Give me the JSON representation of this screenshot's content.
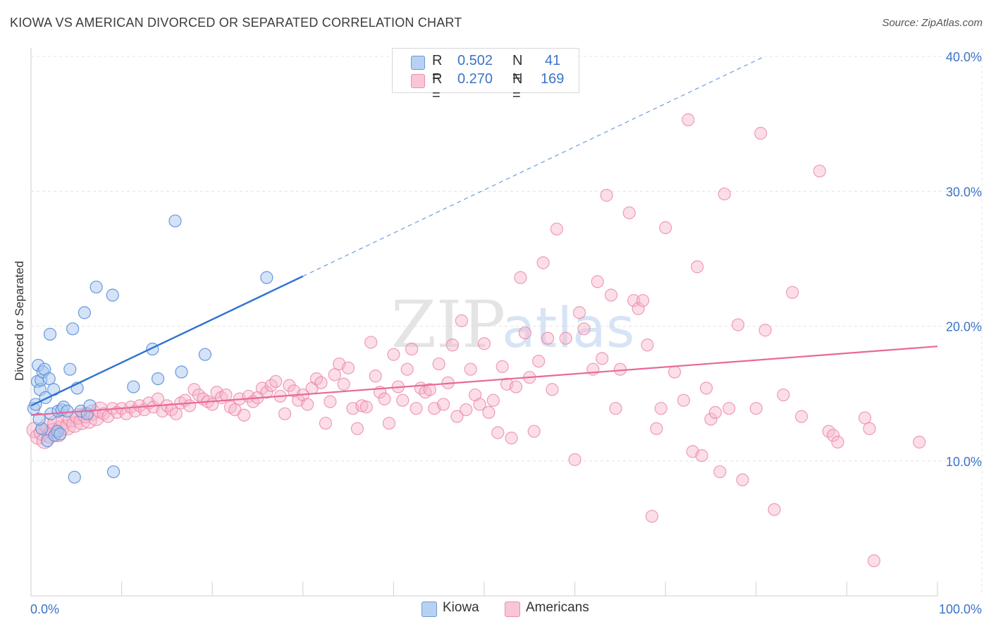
{
  "title": "KIOWA VS AMERICAN DIVORCED OR SEPARATED CORRELATION CHART",
  "source": "Source: ZipAtlas.com",
  "watermark": {
    "zip": "ZIP",
    "atlas": "atlas"
  },
  "legend": {
    "rows": [
      {
        "r_label": "R =",
        "r_value": "0.502",
        "n_label": "N =",
        "n_value": "41"
      },
      {
        "r_label": "R =",
        "r_value": "0.270",
        "n_label": "N =",
        "n_value": "169"
      }
    ]
  },
  "bottom_legend": [
    "Kiowa",
    "Americans"
  ],
  "colors": {
    "kiowa_fill": "#a9c7ef",
    "kiowa_stroke": "#5b8fd8",
    "kiowa_line": "#2f72d0",
    "americans_fill": "#f6b6cc",
    "americans_stroke": "#ea7fa3",
    "americans_line": "#e8689a",
    "axis_label": "#3a74c9",
    "grid": "#e4e4e4"
  },
  "chart_data": {
    "type": "scatter",
    "title": "KIOWA VS AMERICAN DIVORCED OR SEPARATED CORRELATION CHART",
    "xlabel": "",
    "ylabel": "Divorced or Separated",
    "xlim": [
      0,
      100
    ],
    "ylim": [
      0,
      40
    ],
    "x_tick_labels": [
      "0.0%",
      "100.0%"
    ],
    "y_ticks": [
      10,
      20,
      30,
      40
    ],
    "y_tick_labels": [
      "10.0%",
      "20.0%",
      "30.0%",
      "40.0%"
    ],
    "grid": true,
    "legend_position": "top-center",
    "series": [
      {
        "name": "Kiowa",
        "r": 0.502,
        "n": 41,
        "trend": {
          "x": [
            0,
            30
          ],
          "y": [
            14.1,
            23.7
          ],
          "dashed_extension_to_x": 100
        },
        "points": [
          [
            0.3,
            13.9
          ],
          [
            0.5,
            14.2
          ],
          [
            0.7,
            15.9
          ],
          [
            0.8,
            17.1
          ],
          [
            1.0,
            15.3
          ],
          [
            1.1,
            16.0
          ],
          [
            1.3,
            16.6
          ],
          [
            1.5,
            16.8
          ],
          [
            1.6,
            14.7
          ],
          [
            1.8,
            11.5
          ],
          [
            2.0,
            16.1
          ],
          [
            2.1,
            19.4
          ],
          [
            2.2,
            13.5
          ],
          [
            2.5,
            15.3
          ],
          [
            2.6,
            11.9
          ],
          [
            2.9,
            12.2
          ],
          [
            3.0,
            13.7
          ],
          [
            3.2,
            12.0
          ],
          [
            3.4,
            13.8
          ],
          [
            3.6,
            14.0
          ],
          [
            4.0,
            13.7
          ],
          [
            4.3,
            16.8
          ],
          [
            4.6,
            19.8
          ],
          [
            4.8,
            8.8
          ],
          [
            5.1,
            15.4
          ],
          [
            5.5,
            13.7
          ],
          [
            5.9,
            21.0
          ],
          [
            6.2,
            13.5
          ],
          [
            6.5,
            14.1
          ],
          [
            7.2,
            22.9
          ],
          [
            9.0,
            22.3
          ],
          [
            9.1,
            9.2
          ],
          [
            11.3,
            15.5
          ],
          [
            13.4,
            18.3
          ],
          [
            14.0,
            16.1
          ],
          [
            15.9,
            27.8
          ],
          [
            16.6,
            16.6
          ],
          [
            19.2,
            17.9
          ],
          [
            26.0,
            23.6
          ],
          [
            1.2,
            12.4
          ],
          [
            0.9,
            13.1
          ]
        ]
      },
      {
        "name": "Americans",
        "r": 0.27,
        "n": 169,
        "trend": {
          "x": [
            0,
            100
          ],
          "y": [
            13.4,
            18.5
          ]
        },
        "points": [
          [
            0.4,
            12.3
          ],
          [
            0.8,
            11.8
          ],
          [
            1.2,
            12.1
          ],
          [
            1.5,
            11.5
          ],
          [
            1.8,
            12.6
          ],
          [
            2.1,
            11.9
          ],
          [
            2.4,
            12.2
          ],
          [
            2.7,
            12.8
          ],
          [
            3.0,
            12.0
          ],
          [
            3.3,
            12.4
          ],
          [
            3.6,
            12.9
          ],
          [
            4.0,
            12.5
          ],
          [
            4.4,
            13.1
          ],
          [
            4.8,
            12.7
          ],
          [
            5.2,
            13.3
          ],
          [
            5.6,
            12.9
          ],
          [
            6.0,
            13.4
          ],
          [
            6.4,
            13.0
          ],
          [
            6.8,
            13.6
          ],
          [
            7.2,
            13.2
          ],
          [
            7.6,
            13.8
          ],
          [
            8.0,
            13.5
          ],
          [
            8.5,
            13.3
          ],
          [
            9.0,
            13.9
          ],
          [
            9.5,
            13.6
          ],
          [
            10.0,
            13.9
          ],
          [
            10.5,
            13.5
          ],
          [
            11.0,
            14.0
          ],
          [
            11.5,
            13.7
          ],
          [
            12.0,
            14.1
          ],
          [
            12.5,
            13.8
          ],
          [
            13.0,
            14.3
          ],
          [
            13.5,
            14.0
          ],
          [
            14.0,
            14.6
          ],
          [
            14.5,
            13.7
          ],
          [
            15.0,
            14.1
          ],
          [
            15.5,
            13.8
          ],
          [
            16.0,
            13.5
          ],
          [
            16.5,
            14.3
          ],
          [
            17.0,
            14.5
          ],
          [
            17.5,
            14.1
          ],
          [
            18.0,
            15.3
          ],
          [
            18.5,
            14.9
          ],
          [
            19.0,
            14.6
          ],
          [
            19.5,
            14.4
          ],
          [
            20.0,
            14.2
          ],
          [
            20.5,
            15.1
          ],
          [
            21.0,
            14.7
          ],
          [
            21.5,
            14.9
          ],
          [
            22.0,
            14.0
          ],
          [
            22.5,
            13.8
          ],
          [
            23.0,
            14.6
          ],
          [
            23.5,
            13.4
          ],
          [
            24.0,
            14.8
          ],
          [
            24.5,
            14.4
          ],
          [
            25.0,
            14.7
          ],
          [
            25.5,
            15.4
          ],
          [
            26.0,
            15.1
          ],
          [
            26.5,
            15.6
          ],
          [
            27.0,
            15.9
          ],
          [
            27.5,
            14.8
          ],
          [
            28.0,
            13.5
          ],
          [
            28.5,
            15.6
          ],
          [
            29.0,
            15.2
          ],
          [
            29.5,
            14.5
          ],
          [
            30.0,
            14.9
          ],
          [
            30.5,
            14.2
          ],
          [
            31.0,
            15.4
          ],
          [
            31.5,
            16.1
          ],
          [
            32.0,
            15.8
          ],
          [
            32.5,
            12.8
          ],
          [
            33.0,
            14.4
          ],
          [
            33.5,
            16.4
          ],
          [
            34.0,
            17.2
          ],
          [
            34.5,
            15.7
          ],
          [
            35.0,
            16.9
          ],
          [
            35.5,
            13.9
          ],
          [
            36.0,
            12.4
          ],
          [
            36.5,
            14.1
          ],
          [
            37.0,
            14.0
          ],
          [
            37.5,
            18.8
          ],
          [
            38.0,
            16.3
          ],
          [
            38.5,
            15.1
          ],
          [
            39.0,
            14.6
          ],
          [
            39.5,
            12.8
          ],
          [
            40.0,
            17.9
          ],
          [
            40.5,
            15.5
          ],
          [
            41.0,
            14.5
          ],
          [
            41.5,
            16.8
          ],
          [
            42.0,
            18.3
          ],
          [
            42.5,
            13.9
          ],
          [
            43.0,
            15.4
          ],
          [
            43.5,
            15.1
          ],
          [
            44.0,
            15.3
          ],
          [
            44.5,
            13.9
          ],
          [
            45.0,
            17.2
          ],
          [
            45.5,
            14.2
          ],
          [
            46.0,
            15.8
          ],
          [
            46.5,
            18.6
          ],
          [
            47.0,
            13.3
          ],
          [
            47.5,
            20.4
          ],
          [
            48.0,
            13.8
          ],
          [
            48.5,
            16.8
          ],
          [
            49.0,
            14.9
          ],
          [
            49.5,
            14.2
          ],
          [
            50.0,
            18.7
          ],
          [
            50.5,
            13.6
          ],
          [
            51.0,
            14.5
          ],
          [
            51.5,
            12.1
          ],
          [
            52.0,
            17.0
          ],
          [
            52.5,
            15.7
          ],
          [
            53.0,
            11.7
          ],
          [
            53.5,
            15.5
          ],
          [
            54.0,
            23.6
          ],
          [
            54.5,
            19.5
          ],
          [
            55.0,
            16.2
          ],
          [
            55.5,
            12.2
          ],
          [
            56.0,
            17.4
          ],
          [
            56.5,
            24.7
          ],
          [
            57.0,
            19.1
          ],
          [
            57.5,
            15.3
          ],
          [
            58.0,
            27.2
          ],
          [
            59.0,
            19.1
          ],
          [
            60.0,
            10.1
          ],
          [
            60.5,
            21.0
          ],
          [
            61.0,
            19.8
          ],
          [
            62.0,
            16.8
          ],
          [
            62.5,
            23.3
          ],
          [
            63.0,
            17.6
          ],
          [
            63.5,
            29.7
          ],
          [
            64.0,
            22.3
          ],
          [
            64.5,
            13.9
          ],
          [
            65.0,
            16.8
          ],
          [
            66.0,
            28.4
          ],
          [
            66.5,
            21.9
          ],
          [
            67.0,
            21.3
          ],
          [
            67.5,
            21.9
          ],
          [
            68.0,
            18.6
          ],
          [
            68.5,
            5.9
          ],
          [
            69.0,
            12.4
          ],
          [
            69.5,
            13.9
          ],
          [
            70.0,
            27.3
          ],
          [
            71.0,
            16.6
          ],
          [
            72.0,
            14.5
          ],
          [
            72.5,
            35.3
          ],
          [
            73.0,
            10.7
          ],
          [
            73.5,
            24.4
          ],
          [
            74.0,
            10.4
          ],
          [
            74.5,
            15.4
          ],
          [
            75.0,
            13.1
          ],
          [
            75.5,
            13.6
          ],
          [
            76.0,
            9.2
          ],
          [
            76.5,
            29.8
          ],
          [
            77.0,
            13.9
          ],
          [
            78.0,
            20.1
          ],
          [
            78.5,
            8.6
          ],
          [
            80.0,
            13.9
          ],
          [
            80.5,
            34.3
          ],
          [
            81.0,
            19.7
          ],
          [
            82.0,
            6.4
          ],
          [
            83.0,
            14.9
          ],
          [
            84.0,
            22.5
          ],
          [
            85.0,
            13.3
          ],
          [
            87.0,
            31.5
          ],
          [
            88.0,
            12.2
          ],
          [
            88.5,
            11.9
          ],
          [
            89.0,
            11.4
          ],
          [
            92.0,
            13.2
          ],
          [
            92.5,
            12.4
          ],
          [
            93.0,
            2.6
          ],
          [
            98.0,
            11.4
          ]
        ]
      }
    ]
  }
}
